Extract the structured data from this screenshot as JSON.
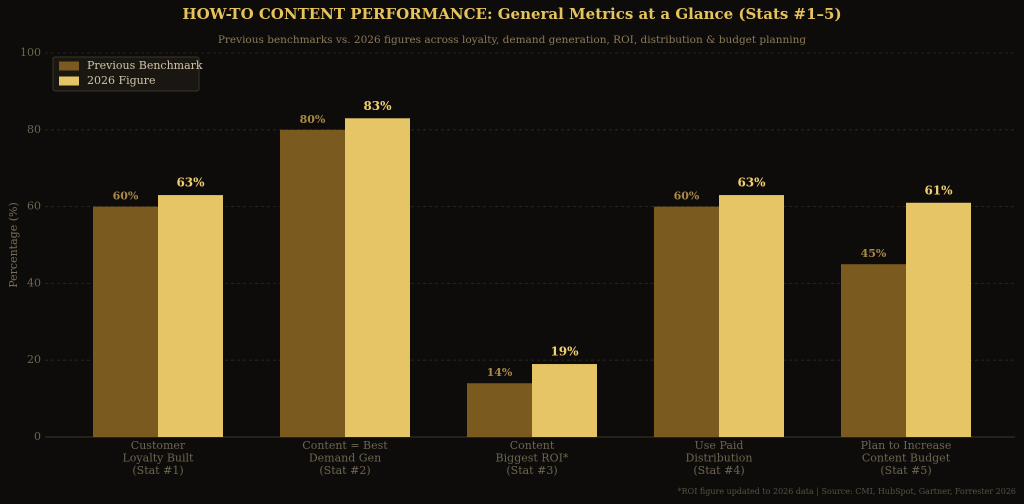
{
  "chart_data": {
    "type": "bar",
    "title": "HOW-TO CONTENT PERFORMANCE: General Metrics at a Glance (Stats #1–5)",
    "subtitle": "Previous benchmarks vs. 2026 figures across loyalty, demand generation, ROI, distribution & budget planning",
    "y_label": "Percentage (%)",
    "footnote": "*ROI figure updated to 2026 data  |  Source: CMI, HubSpot, Gartner, Forrester 2026",
    "categories": [
      "Customer\nLoyalty Built\n(Stat #1)",
      "Content = Best\nDemand Gen\n(Stat #2)",
      "Content\nBiggest ROI*\n(Stat #3)",
      "Use Paid\nDistribution\n(Stat #4)",
      "Plan to Increase\nContent Budget\n(Stat #5)"
    ],
    "series": [
      {
        "name": "Previous Benchmark",
        "color": "#7a5a1e",
        "values": [
          60,
          80,
          14,
          60,
          45
        ],
        "value_labels": [
          "60%",
          "80%",
          "14%",
          "60%",
          "45%"
        ]
      },
      {
        "name": "2026 Figure",
        "color": "#e6c566",
        "values": [
          63,
          83,
          19,
          63,
          61
        ],
        "value_labels": [
          "63%",
          "83%",
          "19%",
          "63%",
          "61%"
        ]
      }
    ],
    "ylim": [
      0,
      100
    ],
    "yticks": [
      0,
      20,
      40,
      60,
      80,
      100
    ],
    "grid": true,
    "legend": "upper left"
  }
}
